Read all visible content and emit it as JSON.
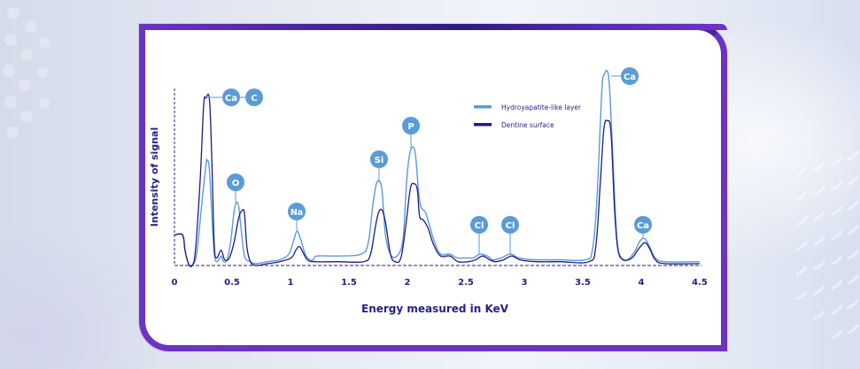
{
  "chart_data": {
    "type": "line",
    "title": "",
    "xlabel": "Energy measured in KeV",
    "ylabel": "Intensity of signal",
    "xlim": [
      0,
      4.5
    ],
    "ylim": [
      0,
      100
    ],
    "x_ticks": [
      "0",
      "0.5",
      "1",
      "1.5",
      "2",
      "2.5",
      "3",
      "3.5",
      "4",
      "4.5"
    ],
    "y_ticks": [],
    "grid": false,
    "legend_position": "upper-center-right",
    "legend": [
      "Hydroyapatite-like layer",
      "Dentine surface"
    ],
    "series": [
      {
        "name": "Hydroyapatite-like layer",
        "color": "#5b9bd8",
        "points": [
          [
            0.0,
            16
          ],
          [
            0.07,
            16
          ],
          [
            0.09,
            8
          ],
          [
            0.12,
            1
          ],
          [
            0.15,
            0
          ],
          [
            0.19,
            6
          ],
          [
            0.23,
            30
          ],
          [
            0.27,
            53
          ],
          [
            0.28,
            55
          ],
          [
            0.3,
            50
          ],
          [
            0.33,
            15
          ],
          [
            0.35,
            3
          ],
          [
            0.38,
            3
          ],
          [
            0.4,
            5
          ],
          [
            0.42,
            2
          ],
          [
            0.45,
            3
          ],
          [
            0.48,
            12
          ],
          [
            0.51,
            28
          ],
          [
            0.53,
            33
          ],
          [
            0.55,
            31
          ],
          [
            0.57,
            20
          ],
          [
            0.6,
            5
          ],
          [
            0.65,
            2
          ],
          [
            0.7,
            1
          ],
          [
            0.8,
            2
          ],
          [
            0.9,
            3
          ],
          [
            0.98,
            6
          ],
          [
            1.02,
            13
          ],
          [
            1.05,
            18
          ],
          [
            1.08,
            14
          ],
          [
            1.12,
            6
          ],
          [
            1.16,
            3
          ],
          [
            1.19,
            3
          ],
          [
            1.22,
            5
          ],
          [
            1.4,
            5
          ],
          [
            1.6,
            6
          ],
          [
            1.66,
            12
          ],
          [
            1.7,
            32
          ],
          [
            1.73,
            43
          ],
          [
            1.76,
            44
          ],
          [
            1.78,
            38
          ],
          [
            1.81,
            15
          ],
          [
            1.86,
            5
          ],
          [
            1.92,
            6
          ],
          [
            1.96,
            15
          ],
          [
            1.99,
            45
          ],
          [
            2.02,
            60
          ],
          [
            2.06,
            60
          ],
          [
            2.09,
            40
          ],
          [
            2.11,
            31
          ],
          [
            2.15,
            28
          ],
          [
            2.18,
            22
          ],
          [
            2.23,
            12
          ],
          [
            2.28,
            6
          ],
          [
            2.36,
            6
          ],
          [
            2.42,
            4
          ],
          [
            2.5,
            4
          ],
          [
            2.56,
            4
          ],
          [
            2.62,
            6
          ],
          [
            2.68,
            5
          ],
          [
            2.73,
            3
          ],
          [
            2.8,
            4
          ],
          [
            2.88,
            6
          ],
          [
            2.95,
            4
          ],
          [
            3.1,
            3
          ],
          [
            3.3,
            3
          ],
          [
            3.52,
            3
          ],
          [
            3.58,
            8
          ],
          [
            3.62,
            35
          ],
          [
            3.66,
            90
          ],
          [
            3.68,
            100
          ],
          [
            3.72,
            99
          ],
          [
            3.75,
            65
          ],
          [
            3.79,
            15
          ],
          [
            3.83,
            4
          ],
          [
            3.88,
            3
          ],
          [
            3.94,
            7
          ],
          [
            3.99,
            13
          ],
          [
            4.03,
            14
          ],
          [
            4.07,
            10
          ],
          [
            4.12,
            4
          ],
          [
            4.2,
            2
          ],
          [
            4.5,
            2
          ]
        ]
      },
      {
        "name": "Dentine surface",
        "color": "#1e1b86",
        "points": [
          [
            0.0,
            16
          ],
          [
            0.07,
            16
          ],
          [
            0.09,
            8
          ],
          [
            0.12,
            1
          ],
          [
            0.15,
            0
          ],
          [
            0.18,
            8
          ],
          [
            0.22,
            45
          ],
          [
            0.25,
            84
          ],
          [
            0.27,
            88
          ],
          [
            0.3,
            87
          ],
          [
            0.32,
            55
          ],
          [
            0.34,
            12
          ],
          [
            0.36,
            4
          ],
          [
            0.4,
            8
          ],
          [
            0.43,
            3
          ],
          [
            0.47,
            4
          ],
          [
            0.51,
            12
          ],
          [
            0.55,
            25
          ],
          [
            0.58,
            29
          ],
          [
            0.6,
            27
          ],
          [
            0.62,
            10
          ],
          [
            0.65,
            2
          ],
          [
            0.7,
            0
          ],
          [
            0.8,
            1
          ],
          [
            0.9,
            2
          ],
          [
            1.0,
            4
          ],
          [
            1.04,
            8
          ],
          [
            1.07,
            10
          ],
          [
            1.1,
            7
          ],
          [
            1.14,
            3
          ],
          [
            1.2,
            2
          ],
          [
            1.4,
            2
          ],
          [
            1.62,
            2
          ],
          [
            1.68,
            6
          ],
          [
            1.72,
            20
          ],
          [
            1.75,
            28
          ],
          [
            1.78,
            29
          ],
          [
            1.81,
            22
          ],
          [
            1.85,
            6
          ],
          [
            1.89,
            2
          ],
          [
            1.94,
            4
          ],
          [
            1.98,
            20
          ],
          [
            2.02,
            40
          ],
          [
            2.05,
            43
          ],
          [
            2.08,
            40
          ],
          [
            2.1,
            26
          ],
          [
            2.13,
            24
          ],
          [
            2.17,
            20
          ],
          [
            2.22,
            11
          ],
          [
            2.28,
            5
          ],
          [
            2.36,
            5
          ],
          [
            2.43,
            2
          ],
          [
            2.52,
            2
          ],
          [
            2.58,
            3
          ],
          [
            2.64,
            5
          ],
          [
            2.7,
            3
          ],
          [
            2.75,
            2
          ],
          [
            2.82,
            3
          ],
          [
            2.89,
            5
          ],
          [
            2.96,
            3
          ],
          [
            3.1,
            2
          ],
          [
            3.3,
            2
          ],
          [
            3.55,
            2
          ],
          [
            3.61,
            10
          ],
          [
            3.65,
            45
          ],
          [
            3.68,
            72
          ],
          [
            3.71,
            76
          ],
          [
            3.74,
            70
          ],
          [
            3.77,
            30
          ],
          [
            3.8,
            8
          ],
          [
            3.85,
            3
          ],
          [
            3.92,
            4
          ],
          [
            3.98,
            9
          ],
          [
            4.03,
            12
          ],
          [
            4.07,
            9
          ],
          [
            4.12,
            3
          ],
          [
            4.2,
            1
          ],
          [
            4.5,
            1
          ]
        ]
      }
    ],
    "annotations": [
      {
        "label": "Ca",
        "x": 0.28,
        "y": 88
      },
      {
        "label": "C",
        "x": 0.28,
        "y": 88
      },
      {
        "label": "O",
        "x": 0.54,
        "y": 33
      },
      {
        "label": "Na",
        "x": 1.05,
        "y": 18
      },
      {
        "label": "Si",
        "x": 1.76,
        "y": 44
      },
      {
        "label": "P",
        "x": 2.04,
        "y": 60
      },
      {
        "label": "Cl",
        "x": 2.62,
        "y": 6
      },
      {
        "label": "Cl",
        "x": 2.88,
        "y": 6
      },
      {
        "label": "Ca",
        "x": 3.7,
        "y": 100
      },
      {
        "label": "Ca",
        "x": 4.03,
        "y": 14
      }
    ]
  },
  "axes": {
    "x_label": "Energy measured in KeV",
    "y_label": "Intensity of signal",
    "x_ticks": [
      "0",
      "0.5",
      "1",
      "1.5",
      "2",
      "2.5",
      "3",
      "3.5",
      "4",
      "4.5"
    ]
  },
  "legend": {
    "items": [
      {
        "label": "Hydroyapatite-like layer",
        "color": "#5b9bd8"
      },
      {
        "label": "Dentine surface",
        "color": "#1e1b86"
      }
    ]
  },
  "badges": [
    "Ca",
    "C",
    "O",
    "Na",
    "Si",
    "P",
    "Cl",
    "Cl",
    "Ca",
    "Ca"
  ],
  "colors": {
    "frame": "#6c33c2",
    "frame_dark": "#2d1c7e",
    "text": "#241f8a",
    "badge": "#5b9bd8",
    "light_series": "#5b9bd8",
    "dark_series": "#1e1b86"
  }
}
